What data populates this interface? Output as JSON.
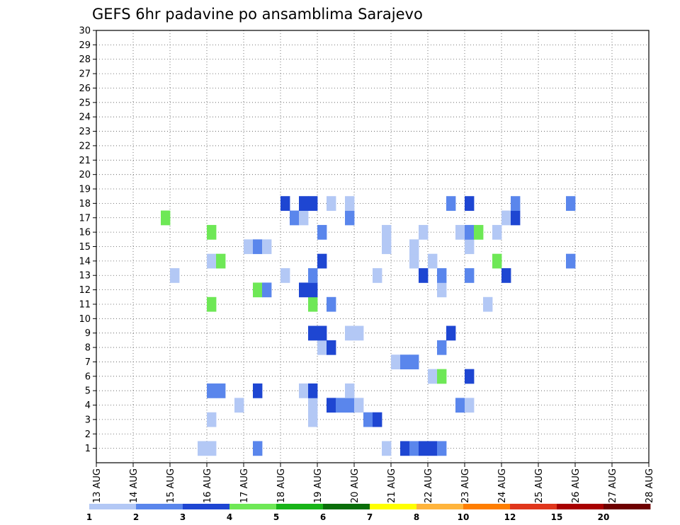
{
  "chart_data": {
    "type": "heatmap",
    "title": "GEFS 6hr padavine po ansamblima Sarajevo",
    "xlabel": "",
    "ylabel": "",
    "x_ticks": [
      "13 AUG",
      "14 AUG",
      "15 AUG",
      "16 AUG",
      "17 AUG",
      "18 AUG",
      "19 AUG",
      "20 AUG",
      "21 AUG",
      "22 AUG",
      "23 AUG",
      "24 AUG",
      "25 AUG",
      "26 AUG",
      "27 AUG",
      "28 AUG"
    ],
    "y_ticks": [
      "1",
      "2",
      "3",
      "4",
      "5",
      "6",
      "7",
      "8",
      "9",
      "10",
      "11",
      "12",
      "13",
      "14",
      "15",
      "16",
      "17",
      "18",
      "19",
      "20",
      "21",
      "22",
      "23",
      "24",
      "25",
      "26",
      "27",
      "28",
      "29",
      "30"
    ],
    "xlim": [
      0,
      60
    ],
    "ylim": [
      0,
      30
    ],
    "grid": true,
    "x_unit": "6h steps from 13 AUG 00Z",
    "legend": {
      "placement": "bottom",
      "labels": [
        "1",
        "2",
        "3",
        "4",
        "5",
        "6",
        "7",
        "8",
        "10",
        "12",
        "15",
        "20"
      ],
      "colors": [
        "#b3c8f5",
        "#5a86ec",
        "#1e46d2",
        "#6ee856",
        "#18b418",
        "#0a6e0a",
        "#ffff00",
        "#ffb43c",
        "#ff7e00",
        "#e0361c",
        "#a80000",
        "#6e0000"
      ]
    },
    "cells": [
      [
        1,
        11,
        0
      ],
      [
        1,
        12,
        0
      ],
      [
        1,
        17,
        1
      ],
      [
        1,
        31,
        0
      ],
      [
        1,
        33,
        2
      ],
      [
        1,
        34,
        1
      ],
      [
        1,
        35,
        2
      ],
      [
        1,
        36,
        2
      ],
      [
        1,
        37,
        1
      ],
      [
        3,
        12,
        0
      ],
      [
        3,
        23,
        0
      ],
      [
        3,
        29,
        1
      ],
      [
        3,
        30,
        2
      ],
      [
        4,
        15,
        0
      ],
      [
        4,
        23,
        0
      ],
      [
        4,
        25,
        2
      ],
      [
        4,
        26,
        1
      ],
      [
        4,
        27,
        1
      ],
      [
        4,
        28,
        0
      ],
      [
        4,
        39,
        1
      ],
      [
        4,
        40,
        0
      ],
      [
        5,
        12,
        1
      ],
      [
        5,
        13,
        1
      ],
      [
        5,
        17,
        2
      ],
      [
        5,
        22,
        0
      ],
      [
        5,
        23,
        2
      ],
      [
        5,
        27,
        0
      ],
      [
        6,
        36,
        0
      ],
      [
        6,
        37,
        3
      ],
      [
        6,
        40,
        2
      ],
      [
        7,
        32,
        0
      ],
      [
        7,
        33,
        1
      ],
      [
        7,
        34,
        1
      ],
      [
        8,
        24,
        0
      ],
      [
        8,
        25,
        2
      ],
      [
        8,
        37,
        1
      ],
      [
        9,
        23,
        2
      ],
      [
        9,
        24,
        2
      ],
      [
        9,
        27,
        0
      ],
      [
        9,
        28,
        0
      ],
      [
        9,
        38,
        2
      ],
      [
        11,
        12,
        3
      ],
      [
        11,
        23,
        3
      ],
      [
        11,
        25,
        1
      ],
      [
        11,
        42,
        0
      ],
      [
        12,
        17,
        3
      ],
      [
        12,
        18,
        1
      ],
      [
        12,
        22,
        2
      ],
      [
        12,
        23,
        2
      ],
      [
        12,
        37,
        0
      ],
      [
        13,
        8,
        0
      ],
      [
        13,
        20,
        0
      ],
      [
        13,
        23,
        1
      ],
      [
        13,
        30,
        0
      ],
      [
        13,
        35,
        2
      ],
      [
        13,
        37,
        1
      ],
      [
        13,
        40,
        1
      ],
      [
        13,
        44,
        2
      ],
      [
        14,
        12,
        0
      ],
      [
        14,
        13,
        3
      ],
      [
        14,
        24,
        2
      ],
      [
        14,
        34,
        0
      ],
      [
        14,
        36,
        0
      ],
      [
        14,
        43,
        3
      ],
      [
        14,
        51,
        1
      ],
      [
        15,
        16,
        0
      ],
      [
        15,
        17,
        1
      ],
      [
        15,
        18,
        0
      ],
      [
        15,
        31,
        0
      ],
      [
        15,
        34,
        0
      ],
      [
        15,
        40,
        0
      ],
      [
        16,
        12,
        3
      ],
      [
        16,
        24,
        1
      ],
      [
        16,
        31,
        0
      ],
      [
        16,
        35,
        0
      ],
      [
        16,
        39,
        0
      ],
      [
        16,
        40,
        1
      ],
      [
        16,
        41,
        3
      ],
      [
        16,
        43,
        0
      ],
      [
        17,
        7,
        3
      ],
      [
        17,
        21,
        1
      ],
      [
        17,
        22,
        0
      ],
      [
        17,
        27,
        1
      ],
      [
        17,
        44,
        0
      ],
      [
        17,
        45,
        2
      ],
      [
        18,
        20,
        2
      ],
      [
        18,
        22,
        2
      ],
      [
        18,
        23,
        2
      ],
      [
        18,
        25,
        0
      ],
      [
        18,
        27,
        0
      ],
      [
        18,
        38,
        1
      ],
      [
        18,
        40,
        2
      ],
      [
        18,
        45,
        1
      ],
      [
        18,
        51,
        1
      ]
    ]
  }
}
